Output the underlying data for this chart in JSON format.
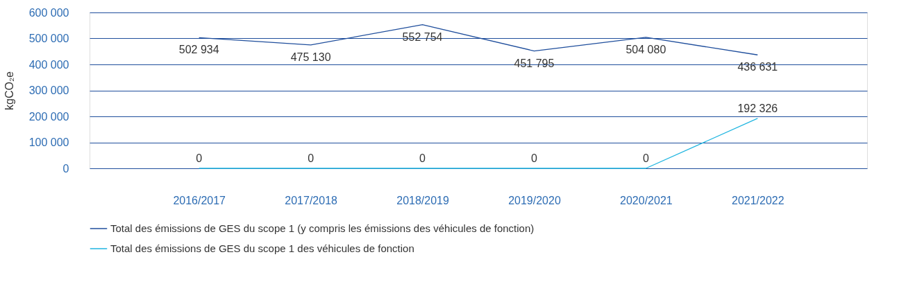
{
  "chart_data": {
    "type": "line",
    "ylabel": "kgCO₂e",
    "categories": [
      "2016/2017",
      "2017/2018",
      "2018/2019",
      "2019/2020",
      "2020/2021",
      "2021/2022"
    ],
    "series": [
      {
        "name": "Total des émissions de GES du scope 1 (y compris les émissions des véhicules de fonction)",
        "color": "#1f4e9c",
        "values": [
          502934,
          475130,
          552754,
          451795,
          504080,
          436631
        ],
        "value_labels": [
          "502 934",
          "475 130",
          "552 754",
          "451 795",
          "504 080",
          "436 631"
        ]
      },
      {
        "name": "Total des émissions de GES du scope 1 des véhicules de fonction",
        "color": "#1fb5e0",
        "values": [
          0,
          0,
          0,
          0,
          0,
          192326
        ],
        "value_labels": [
          "0",
          "0",
          "0",
          "0",
          "0",
          "192 326"
        ]
      }
    ],
    "ylim": [
      0,
      600000
    ],
    "yticks": [
      {
        "value": 0,
        "label": "0"
      },
      {
        "value": 100000,
        "label": "100 000"
      },
      {
        "value": 200000,
        "label": "200 000"
      },
      {
        "value": 300000,
        "label": "300 000"
      },
      {
        "value": 400000,
        "label": "400 000"
      },
      {
        "value": 500000,
        "label": "500 000"
      },
      {
        "value": 600000,
        "label": "600 000"
      }
    ],
    "grid": "y",
    "legend": "bottom",
    "marker": "none",
    "line_style": "solid"
  }
}
